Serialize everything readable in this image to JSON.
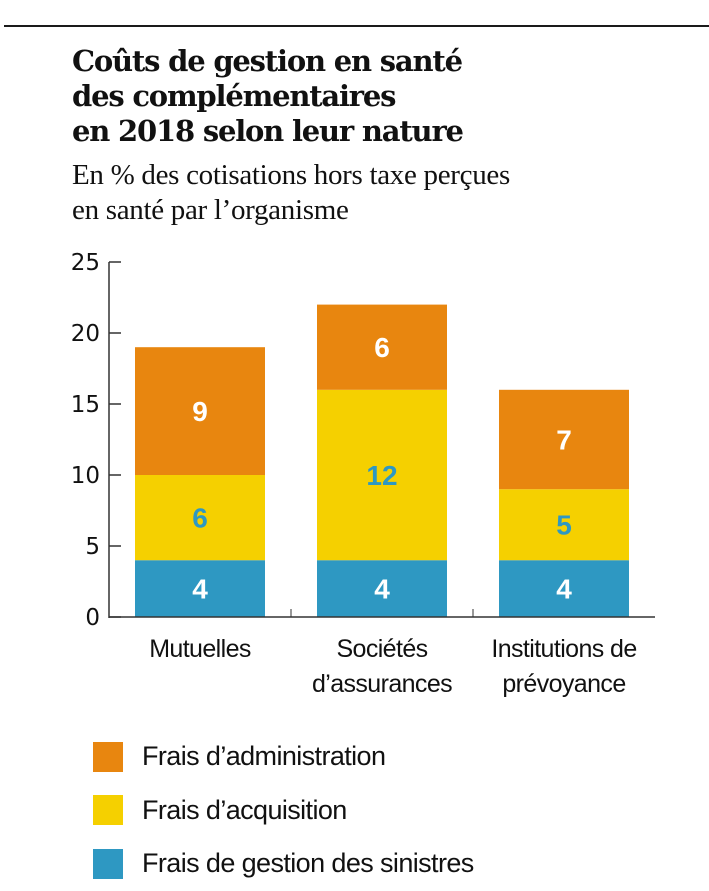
{
  "header": {
    "title_lines": [
      "Coûts de gestion en santé",
      "des complémentaires",
      "en 2018 selon leur nature"
    ],
    "subtitle_lines": [
      "En % des cotisations hors taxe perçues",
      "en santé par l’organisme"
    ]
  },
  "colors": {
    "administration": "#E8860F",
    "acquisition": "#F5D000",
    "sinistres": "#2E98C2",
    "label_on_dark": "#FFFFFF",
    "label_on_yellow": "#2E98C2"
  },
  "legend": [
    {
      "label": "Frais d’administration",
      "color": "#E8860F"
    },
    {
      "label": "Frais d’acquisition",
      "color": "#F5D000"
    },
    {
      "label": "Frais de gestion des sinistres",
      "color": "#2E98C2"
    }
  ],
  "chart_data": {
    "type": "bar",
    "stacked": true,
    "title": "Coûts de gestion en santé des complémentaires en 2018 selon leur nature",
    "subtitle": "En % des cotisations hors taxe perçues en santé par l’organisme",
    "xlabel": "",
    "ylabel": "",
    "categories": [
      [
        "Mutuelles"
      ],
      [
        "Sociétés",
        "d’assurances"
      ],
      [
        "Institutions de",
        "prévoyance"
      ]
    ],
    "series": [
      {
        "name": "Frais de gestion des sinistres",
        "color": "#2E98C2",
        "label_color": "#FFFFFF",
        "values": [
          4,
          4,
          4
        ]
      },
      {
        "name": "Frais d’acquisition",
        "color": "#F5D000",
        "label_color": "#2E98C2",
        "values": [
          6,
          12,
          5
        ]
      },
      {
        "name": "Frais d’administration",
        "color": "#E8860F",
        "label_color": "#FFFFFF",
        "values": [
          9,
          6,
          7
        ]
      }
    ],
    "ylim": [
      0,
      25
    ],
    "yticks": [
      0,
      5,
      10,
      15,
      20,
      25
    ],
    "grid": false,
    "legend_position": "bottom-left",
    "data_labels": true
  }
}
